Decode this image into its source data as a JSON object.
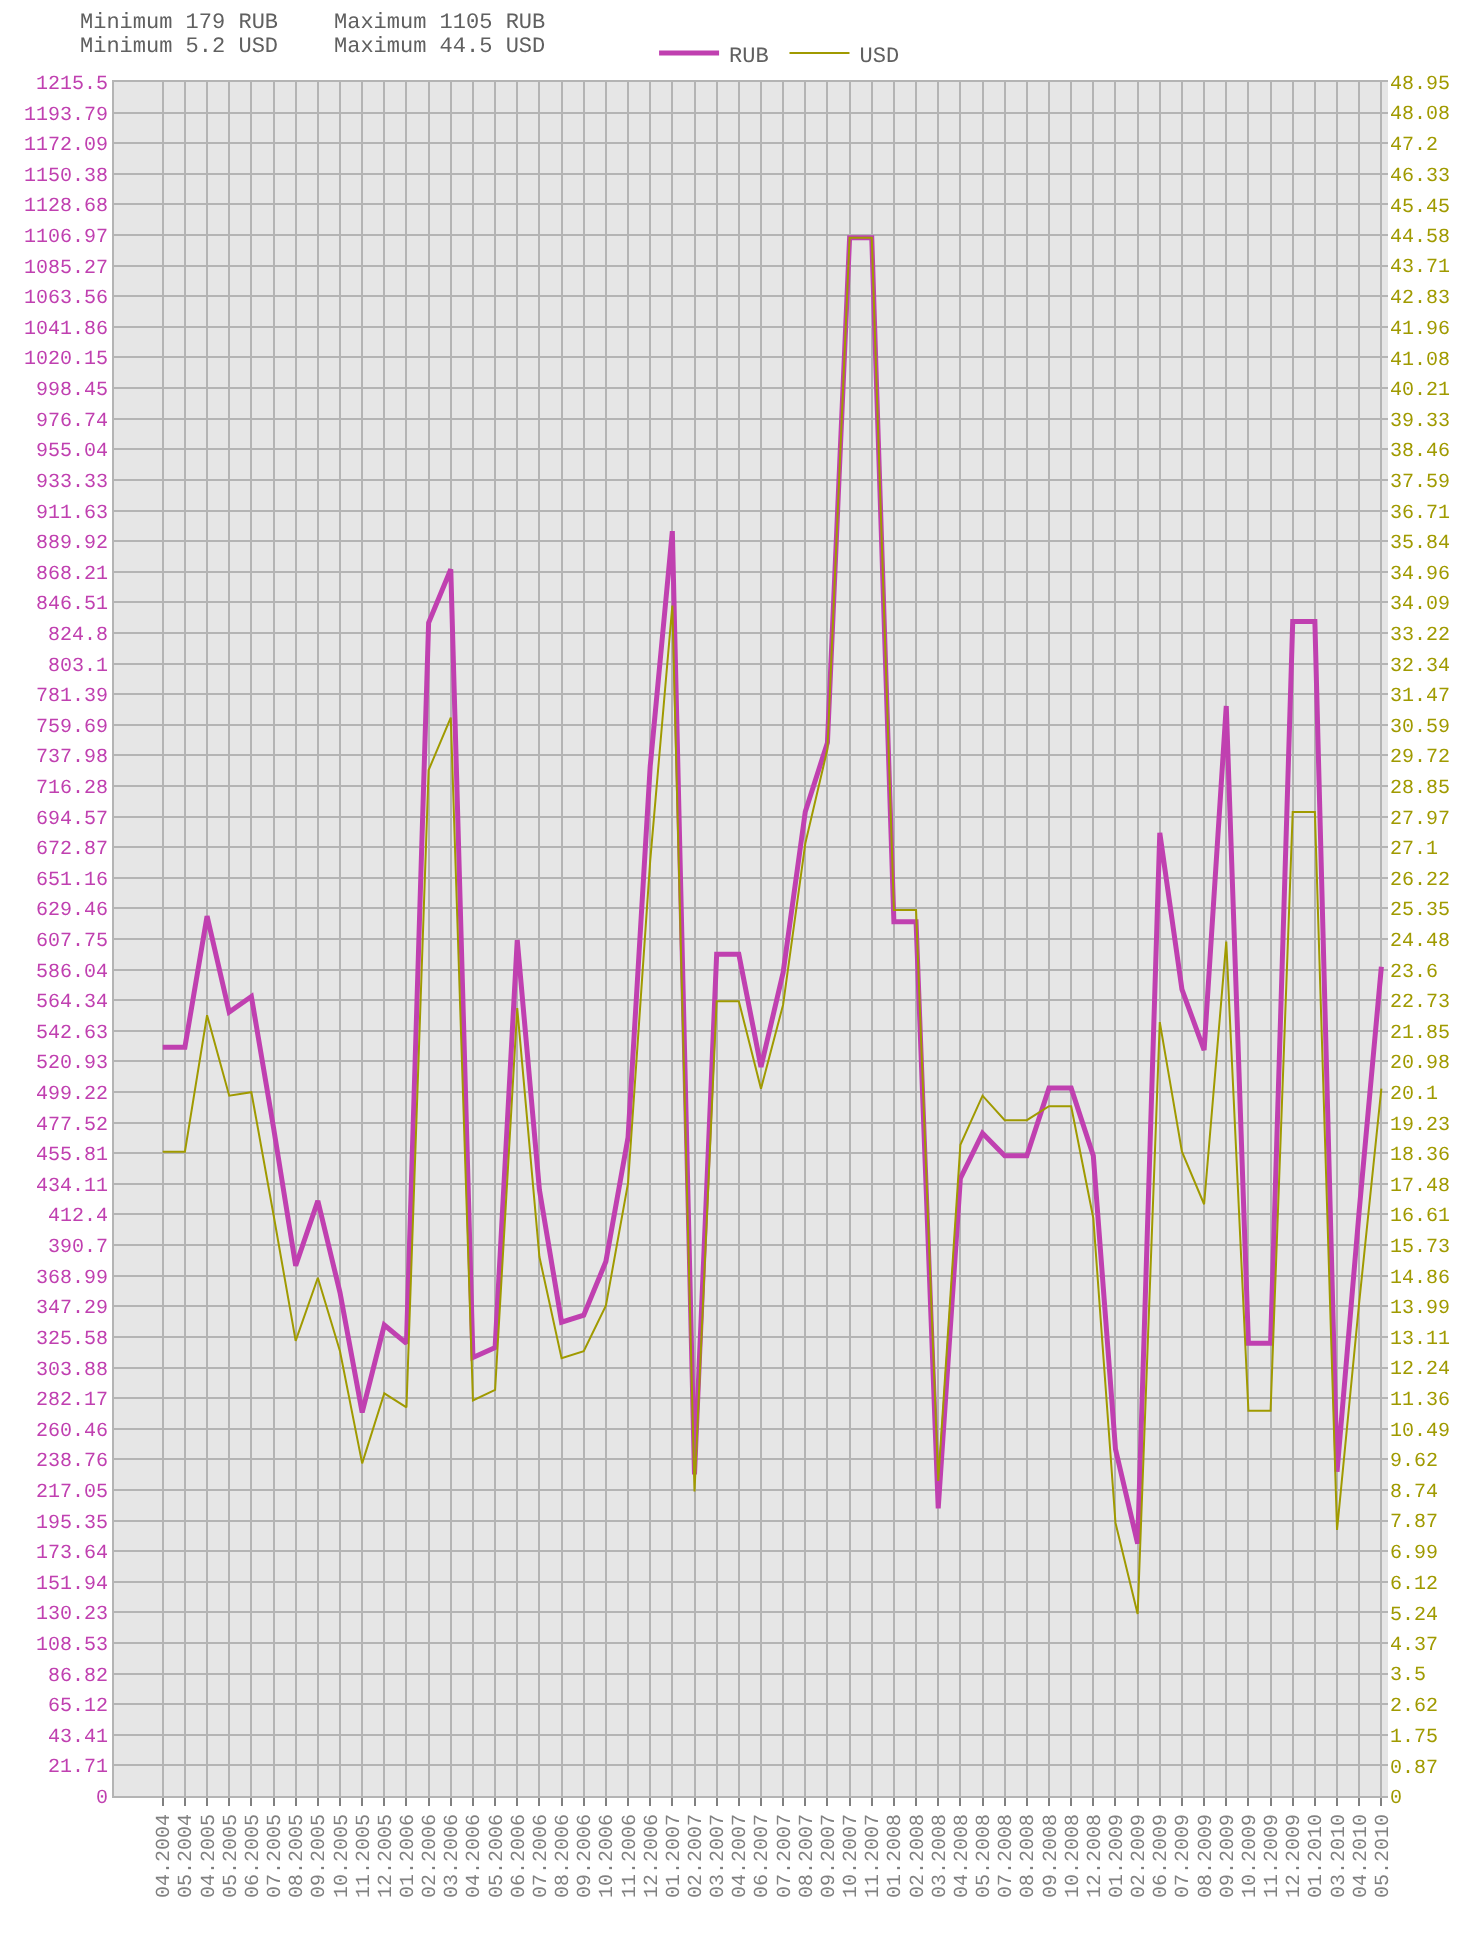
{
  "chart_data": {
    "type": "line",
    "categories": [
      "04.2004",
      "05.2004",
      "04.2005",
      "05.2005",
      "06.2005",
      "07.2005",
      "08.2005",
      "09.2005",
      "10.2005",
      "11.2005",
      "12.2005",
      "01.2006",
      "02.2006",
      "03.2006",
      "04.2006",
      "05.2006",
      "06.2006",
      "07.2006",
      "08.2006",
      "09.2006",
      "10.2006",
      "11.2006",
      "12.2006",
      "01.2007",
      "02.2007",
      "03.2007",
      "04.2007",
      "06.2007",
      "07.2007",
      "08.2007",
      "09.2007",
      "10.2007",
      "11.2007",
      "01.2008",
      "02.2008",
      "03.2008",
      "04.2008",
      "05.2008",
      "07.2008",
      "08.2008",
      "09.2008",
      "10.2008",
      "12.2008",
      "01.2009",
      "02.2009",
      "06.2009",
      "07.2009",
      "08.2009",
      "09.2009",
      "10.2009",
      "11.2009",
      "12.2009",
      "01.2010",
      "03.2010",
      "04.2010",
      "05.2010"
    ],
    "series": [
      {
        "name": "RUB",
        "color": "#c040b0",
        "values": [
          531,
          531,
          624,
          556,
          567,
          474,
          376,
          422,
          357,
          272,
          334,
          321,
          832,
          870,
          311,
          318,
          607,
          430,
          336,
          341,
          379,
          467,
          730,
          897,
          228,
          597,
          597,
          517,
          584,
          698,
          747,
          1105,
          1105,
          620,
          620,
          204,
          438,
          470,
          454,
          454,
          502,
          502,
          454,
          246,
          179,
          683,
          572,
          529,
          773,
          321,
          321,
          833,
          833,
          230,
          415,
          588
        ]
      },
      {
        "name": "USD",
        "color": "#a09a00",
        "axis": "y2",
        "values": [
          18.4,
          18.4,
          22.3,
          20.0,
          20.1,
          16.6,
          13.0,
          14.8,
          12.7,
          9.5,
          11.5,
          11.1,
          29.3,
          30.8,
          11.3,
          11.6,
          22.5,
          15.4,
          12.5,
          12.7,
          14.0,
          17.5,
          26.7,
          34.0,
          8.7,
          22.7,
          22.7,
          20.2,
          22.6,
          27.2,
          29.9,
          44.5,
          44.5,
          25.3,
          25.3,
          9.0,
          18.6,
          20.0,
          19.3,
          19.3,
          19.7,
          19.7,
          16.5,
          7.8,
          5.2,
          22.1,
          18.4,
          16.9,
          24.4,
          11.0,
          11.0,
          28.1,
          28.1,
          7.6,
          14.1,
          20.2
        ]
      }
    ],
    "ylim": [
      0,
      1215.5
    ],
    "yticks": [
      0,
      21.71,
      43.41,
      65.12,
      86.82,
      108.53,
      130.23,
      151.94,
      173.64,
      195.35,
      217.05,
      238.76,
      260.46,
      282.17,
      303.88,
      325.58,
      347.29,
      368.99,
      390.7,
      412.4,
      434.11,
      455.81,
      477.52,
      499.22,
      520.93,
      542.63,
      564.34,
      586.04,
      607.75,
      629.46,
      651.16,
      672.87,
      694.57,
      716.28,
      737.98,
      759.69,
      781.39,
      803.1,
      824.8,
      846.51,
      868.21,
      889.92,
      911.63,
      933.33,
      955.04,
      976.74,
      998.45,
      1020.15,
      1041.86,
      1063.56,
      1085.27,
      1106.97,
      1128.68,
      1150.38,
      1172.09,
      1193.79,
      1215.5
    ],
    "y2lim": [
      0,
      48.95
    ],
    "y2ticks": [
      0,
      0.87,
      1.75,
      2.62,
      3.5,
      4.37,
      5.24,
      6.12,
      6.99,
      7.87,
      8.74,
      9.62,
      10.49,
      11.36,
      12.24,
      13.11,
      13.99,
      14.86,
      15.73,
      16.61,
      17.48,
      18.36,
      19.23,
      20.1,
      20.98,
      21.85,
      22.73,
      23.6,
      24.48,
      25.35,
      26.22,
      27.1,
      27.97,
      28.85,
      29.72,
      30.59,
      31.47,
      32.34,
      33.22,
      34.09,
      34.96,
      35.84,
      36.71,
      37.59,
      38.46,
      39.33,
      40.21,
      41.08,
      41.96,
      42.83,
      43.71,
      44.58,
      45.45,
      46.33,
      47.2,
      48.08,
      48.95
    ],
    "grid": true,
    "legend": "top",
    "line_style": "solid",
    "annotations": [
      "Minimum 179 RUB",
      "Minimum 5.2 USD",
      "Maximum 1105 RUB",
      "Maximum 44.5 USD"
    ]
  }
}
